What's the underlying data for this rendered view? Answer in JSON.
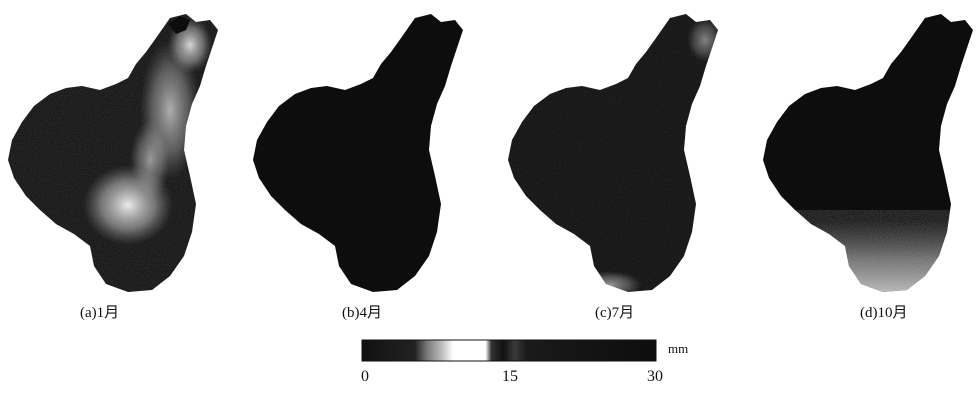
{
  "panels": [
    {
      "label": "(a)1月"
    },
    {
      "label": "(b)4月"
    },
    {
      "label": "(c)7月"
    },
    {
      "label": "(d)10月"
    }
  ],
  "legend": {
    "unit": "mm",
    "ticks": [
      "0",
      "15",
      "30"
    ],
    "min": 0,
    "max": 30
  },
  "colors": {
    "region_dark": "#0d0d0d",
    "region_light": "#ffffff",
    "background": "#ffffff"
  }
}
